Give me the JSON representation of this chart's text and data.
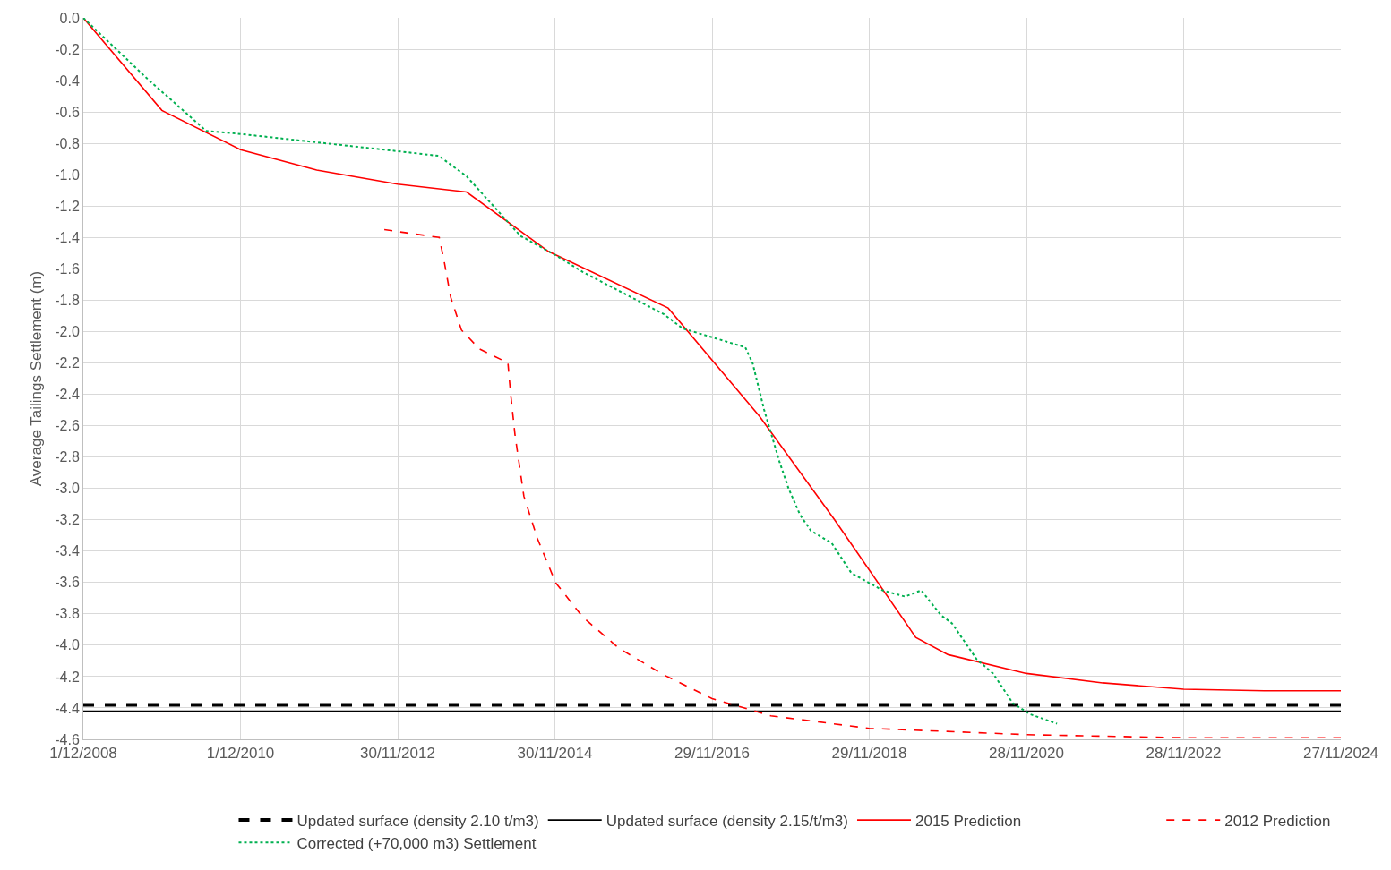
{
  "chart_data": {
    "type": "line",
    "ylabel": "Average Tailings Settlement (m)",
    "xlim": [
      "2008-12-01",
      "2024-11-27"
    ],
    "ylim": [
      -4.6,
      0
    ],
    "xticks": [
      {
        "value": "2008-12-01",
        "label": "1/12/2008"
      },
      {
        "value": "2010-12-01",
        "label": "1/12/2010"
      },
      {
        "value": "2012-11-30",
        "label": "30/11/2012"
      },
      {
        "value": "2014-11-30",
        "label": "30/11/2014"
      },
      {
        "value": "2016-11-29",
        "label": "29/11/2016"
      },
      {
        "value": "2018-11-29",
        "label": "29/11/2018"
      },
      {
        "value": "2020-11-28",
        "label": "28/11/2020"
      },
      {
        "value": "2022-11-28",
        "label": "28/11/2022"
      },
      {
        "value": "2024-11-27",
        "label": "27/11/2024"
      }
    ],
    "yticks": [
      {
        "value": 0,
        "label": "0.0"
      },
      -0.2,
      -0.4,
      -0.6,
      -0.8,
      {
        "value": -1,
        "label": "-1.0"
      },
      -1.2,
      -1.4,
      -1.6,
      -1.8,
      {
        "value": -2,
        "label": "-2.0"
      },
      -2.2,
      -2.4,
      -2.6,
      -2.8,
      {
        "value": -3,
        "label": "-3.0"
      },
      -3.2,
      -3.4,
      -3.6,
      -3.8,
      {
        "value": -4,
        "label": "-4.0"
      },
      -4.2,
      -4.4,
      -4.6
    ],
    "grid": true,
    "legend": "bottom",
    "marker": "none",
    "series": [
      {
        "name": "Updated surface (density 2.10 t/m3)",
        "color": "#000000",
        "line_style": "dashed",
        "x": [
          "2008-12-01",
          "2024-11-27"
        ],
        "values": [
          -4.38,
          -4.38
        ]
      },
      {
        "name": "Updated surface (density 2.15/t/m3)",
        "color": "#000000",
        "line_style": "solid",
        "x": [
          "2008-12-01",
          "2024-11-27"
        ],
        "values": [
          -4.42,
          -4.42
        ]
      },
      {
        "name": "2015 Prediction",
        "color": "#ff0000",
        "line_style": "solid",
        "x": [
          "2008-12-01",
          "2009-12-01",
          "2010-12-01",
          "2011-11-20",
          "2012-11-30",
          "2013-10-16",
          "2014-11-01",
          "2016-05-09",
          "2017-07-07",
          "2018-06-21",
          "2019-07-03",
          "2019-11-30",
          "2020-11-28",
          "2021-11-17",
          "2022-11-28",
          "2023-12-07",
          "2024-11-27"
        ],
        "values": [
          0,
          -0.59,
          -0.84,
          -0.97,
          -1.06,
          -1.11,
          -1.49,
          -1.85,
          -2.54,
          -3.2,
          -3.95,
          -4.06,
          -4.18,
          -4.24,
          -4.28,
          -4.29,
          -4.29
        ]
      },
      {
        "name": "2012 Prediction",
        "color": "#ff0000",
        "line_style": "dashed",
        "x": [
          "2012-09-29",
          "2013-06-11",
          "2013-07-05",
          "2013-08-03",
          "2013-09-22",
          "2013-12-14",
          "2014-04-26",
          "2014-05-08",
          "2014-05-29",
          "2014-07-09",
          "2014-09-10",
          "2014-12-03",
          "2015-04-08",
          "2015-09-24",
          "2016-04-20",
          "2016-11-29",
          "2017-08-29",
          "2018-11-29",
          "2020-11-28",
          "2022-11-28",
          "2024-11-27"
        ],
        "values": [
          -1.35,
          -1.4,
          -1.56,
          -1.78,
          -1.99,
          -2.11,
          -2.2,
          -2.39,
          -2.66,
          -3.05,
          -3.32,
          -3.6,
          -3.82,
          -4.02,
          -4.19,
          -4.34,
          -4.45,
          -4.53,
          -4.57,
          -4.59,
          -4.59
        ]
      },
      {
        "name": "Corrected (+70,000 m3) Settlement",
        "color": "#00b050",
        "line_style": "dotted",
        "x": [
          "2008-12-01",
          "2009-09-18",
          "2010-06-24",
          "2010-12-01",
          "2012-11-30",
          "2013-06-09",
          "2013-10-16",
          "2014-06-23",
          "2014-11-30",
          "2015-04-08",
          "2016-04-20",
          "2016-07-15",
          "2017-05-02",
          "2017-06-05",
          "2017-07-29",
          "2017-10-08",
          "2017-11-19",
          "2018-01-12",
          "2018-03-03",
          "2018-06-08",
          "2018-09-07",
          "2019-01-30",
          "2019-05-14",
          "2019-07-28",
          "2019-10-29",
          "2019-12-18",
          "2020-04-11",
          "2020-06-26",
          "2020-09-26",
          "2020-12-15",
          "2021-04-19"
        ],
        "values": [
          0,
          -0.38,
          -0.72,
          -0.74,
          -0.85,
          -0.88,
          -1.01,
          -1.39,
          -1.51,
          -1.62,
          -1.89,
          -1.98,
          -2.1,
          -2.2,
          -2.5,
          -2.83,
          -3.0,
          -3.17,
          -3.27,
          -3.35,
          -3.54,
          -3.65,
          -3.69,
          -3.65,
          -3.81,
          -3.86,
          -4.09,
          -4.18,
          -4.37,
          -4.44,
          -4.5
        ]
      }
    ]
  }
}
